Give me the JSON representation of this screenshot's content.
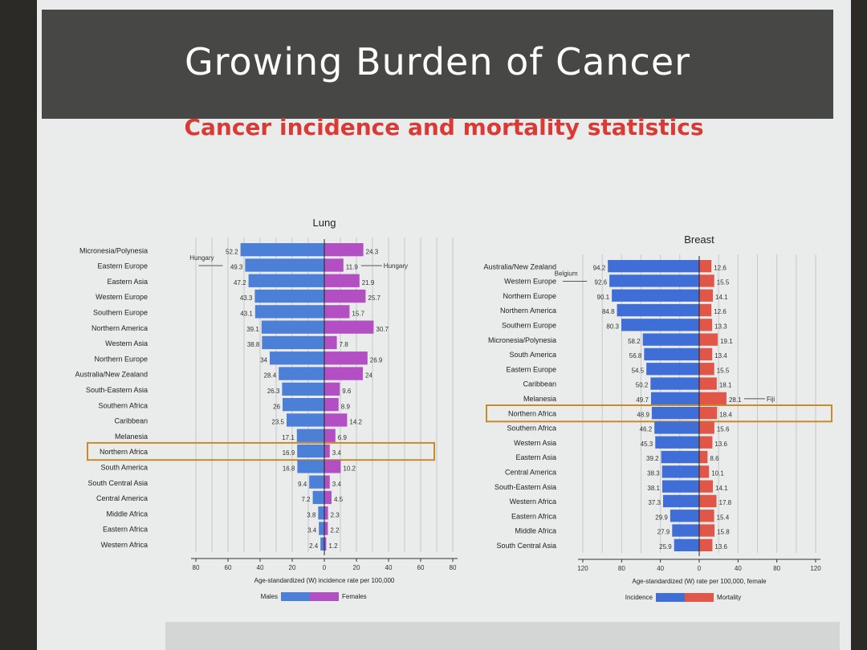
{
  "slide": {
    "title": "Growing Burden of Cancer",
    "subtitle": "Cancer incidence and mortality statistics"
  },
  "colors": {
    "male": "#4c7fd6",
    "female": "#b24fc2",
    "incidence": "#3f6fd6",
    "mortality": "#e0574a",
    "highlight": "#c98a2a",
    "title_bar": "#474746",
    "subtitle": "#d93a36"
  },
  "chart_data": [
    {
      "type": "bar",
      "title": "Lung",
      "xlabel": "Age-standardized (W) incidence rate per 100,000",
      "xlim_left": [
        80,
        0
      ],
      "xlim_right": [
        0,
        80
      ],
      "xticks_left": [
        "80",
        "60",
        "40",
        "20",
        "0"
      ],
      "xticks_right": [
        "20",
        "40",
        "60",
        "80"
      ],
      "categories": [
        "Micronesia/Polynesia",
        "Eastern Europe",
        "Eastern Asia",
        "Western Europe",
        "Southern Europe",
        "Northern America",
        "Western Asia",
        "Northern Europe",
        "Australia/New Zealand",
        "South-Eastern Asia",
        "Southern Africa",
        "Caribbean",
        "Melanesia",
        "Northern Africa",
        "South America",
        "South Central Asia",
        "Central America",
        "Middle Africa",
        "Eastern Africa",
        "Western Africa"
      ],
      "series": [
        {
          "name": "Males",
          "values": [
            52.2,
            49.3,
            47.2,
            43.3,
            43.1,
            39.1,
            38.8,
            34.0,
            28.4,
            26.3,
            26.0,
            23.5,
            17.1,
            16.9,
            16.8,
            9.4,
            7.2,
            3.8,
            3.4,
            2.4
          ]
        },
        {
          "name": "Females",
          "values": [
            24.3,
            11.9,
            21.9,
            25.7,
            15.7,
            30.7,
            7.8,
            26.9,
            24.0,
            9.6,
            8.9,
            14.2,
            6.9,
            3.4,
            10.2,
            3.4,
            4.5,
            2.3,
            2.2,
            1.2
          ]
        }
      ],
      "annotations": [
        {
          "text": "Hungary",
          "side": "left",
          "category": "Eastern Europe"
        },
        {
          "text": "Hungary",
          "side": "right",
          "category": "Eastern Europe"
        }
      ],
      "highlight": "Northern Africa",
      "grid": true,
      "legend": "bottom"
    },
    {
      "type": "bar",
      "title": "Breast",
      "xlabel": "Age-standardized (W) rate per 100,000, female",
      "xlim_left": [
        120,
        0
      ],
      "xlim_right": [
        0,
        120
      ],
      "xticks_left": [
        "120",
        "80",
        "40",
        "0"
      ],
      "xticks_right": [
        "40",
        "80",
        "120"
      ],
      "categories": [
        "Australia/New Zealand",
        "Western Europe",
        "Northern Europe",
        "Northern America",
        "Southern Europe",
        "Micronesia/Polynesia",
        "South America",
        "Eastern Europe",
        "Caribbean",
        "Melanesia",
        "Northern Africa",
        "Southern Africa",
        "Western Asia",
        "Eastern Asia",
        "Central America",
        "South-Eastern Asia",
        "Western Africa",
        "Eastern Africa",
        "Middle Africa",
        "South Central Asia"
      ],
      "series": [
        {
          "name": "Incidence",
          "values": [
            94.2,
            92.6,
            90.1,
            84.8,
            80.3,
            58.2,
            56.8,
            54.5,
            50.2,
            49.7,
            48.9,
            46.2,
            45.3,
            39.2,
            38.3,
            38.1,
            37.3,
            29.9,
            27.9,
            25.9
          ]
        },
        {
          "name": "Mortality",
          "values": [
            12.6,
            15.5,
            14.1,
            12.6,
            13.3,
            19.1,
            13.4,
            15.5,
            18.1,
            28.1,
            18.4,
            15.6,
            13.6,
            8.6,
            10.1,
            14.1,
            17.8,
            15.4,
            15.8,
            13.6
          ]
        }
      ],
      "annotations": [
        {
          "text": "Belgium",
          "side": "left",
          "category": "Western Europe"
        },
        {
          "text": "Fiji",
          "side": "right",
          "category": "Melanesia"
        }
      ],
      "highlight": "Northern Africa",
      "grid": true,
      "legend": "bottom"
    }
  ]
}
